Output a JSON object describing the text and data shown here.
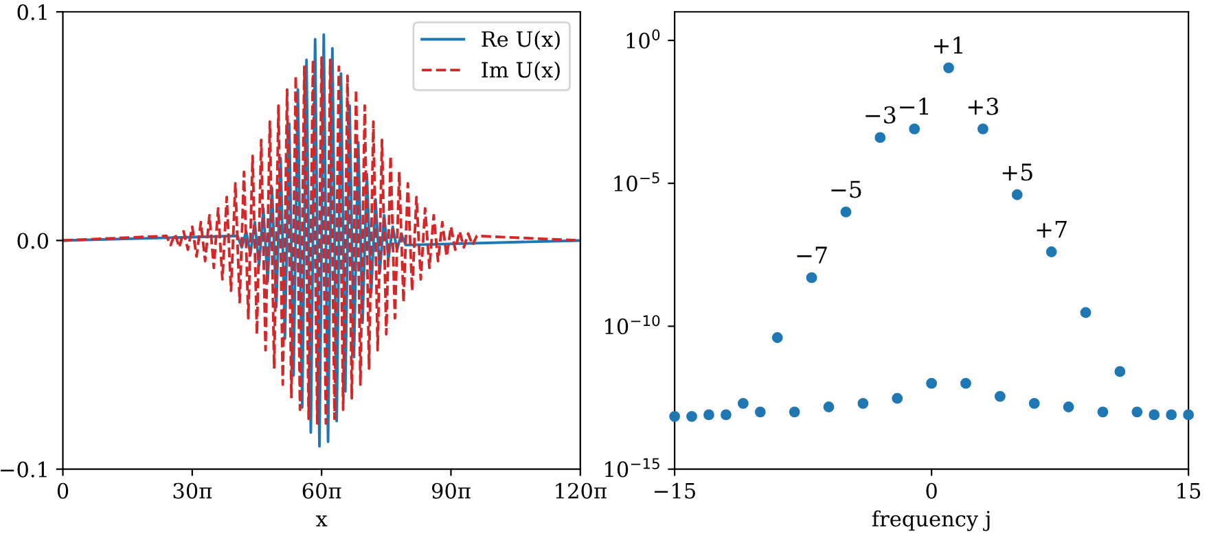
{
  "chart_data": [
    {
      "type": "line",
      "xlabel": "x",
      "xlim": [
        0,
        376.99
      ],
      "xticks": [
        0,
        {
          "value": 94.25,
          "label": "30π"
        },
        {
          "value": 188.5,
          "label": "60π"
        },
        {
          "value": 282.74,
          "label": "90π"
        },
        {
          "value": 376.99,
          "label": "120π"
        }
      ],
      "ylim": [
        -0.1,
        0.1
      ],
      "yticks": [
        {
          "value": -0.1,
          "label": "−0.1"
        },
        {
          "value": 0.0,
          "label": "0.0"
        },
        {
          "value": 0.1,
          "label": "0.1"
        }
      ],
      "legend": "top right",
      "grid": false,
      "series": [
        {
          "name": "Re U(x)",
          "color": "#1f77b4",
          "line_style": "solid",
          "x": [
            0,
            127.23,
            130.38,
            133.52,
            136.66,
            139.8,
            142.94,
            146.08,
            149.23,
            152.37,
            155.51,
            158.65,
            161.79,
            164.93,
            168.08,
            171.22,
            174.36,
            177.5,
            180.64,
            183.78,
            186.92,
            190.07,
            193.21,
            196.35,
            199.49,
            202.63,
            205.77,
            208.92,
            212.06,
            215.2,
            218.34,
            221.48,
            224.62,
            227.77,
            230.91,
            234.05,
            237.19,
            240.33,
            243.47,
            246.62,
            249.76,
            376.99
          ],
          "values": [
            0,
            0.002,
            -0.003,
            0.004,
            -0.006,
            0.008,
            -0.011,
            0.014,
            -0.018,
            0.023,
            -0.029,
            0.036,
            -0.043,
            0.051,
            -0.059,
            0.066,
            -0.073,
            0.079,
            -0.084,
            0.088,
            -0.09,
            0.09,
            -0.088,
            0.084,
            -0.079,
            0.073,
            -0.066,
            0.059,
            -0.051,
            0.043,
            -0.036,
            0.029,
            -0.023,
            0.018,
            -0.014,
            0.011,
            -0.008,
            0.006,
            -0.004,
            0.003,
            -0.002,
            0
          ]
        },
        {
          "name": "Im U(x)",
          "color": "#d62728",
          "line_style": "dashed",
          "x": [
            0,
            75.4,
            78.54,
            81.68,
            84.82,
            87.96,
            91.11,
            94.25,
            97.39,
            100.53,
            103.67,
            106.81,
            109.96,
            113.1,
            116.24,
            119.38,
            122.52,
            125.66,
            128.81,
            131.95,
            135.09,
            138.23,
            141.37,
            144.51,
            147.65,
            150.8,
            153.94,
            157.08,
            160.22,
            163.36,
            166.5,
            169.65,
            172.79,
            175.93,
            179.07,
            182.21,
            185.35,
            188.5,
            191.64,
            194.78,
            197.92,
            201.06,
            204.2,
            207.35,
            210.49,
            213.63,
            216.77,
            219.91,
            223.05,
            226.19,
            229.34,
            232.48,
            235.62,
            238.76,
            241.9,
            245.04,
            248.19,
            251.33,
            254.47,
            257.61,
            260.75,
            263.89,
            267.04,
            270.18,
            273.32,
            276.46,
            279.6,
            282.74,
            285.88,
            289.03,
            292.17,
            295.31,
            298.45,
            301.59,
            376.99
          ],
          "values": [
            0,
            0.002,
            -0.002,
            0.003,
            -0.003,
            0.004,
            -0.004,
            0.006,
            -0.007,
            0.008,
            -0.009,
            0.011,
            -0.012,
            0.014,
            -0.017,
            0.019,
            -0.022,
            0.025,
            -0.027,
            0.03,
            -0.034,
            0.037,
            -0.041,
            0.044,
            -0.048,
            0.052,
            -0.056,
            0.059,
            -0.063,
            0.066,
            -0.069,
            0.072,
            -0.074,
            0.076,
            -0.078,
            0.079,
            -0.08,
            0.08,
            -0.08,
            0.079,
            -0.078,
            0.076,
            -0.074,
            0.072,
            -0.069,
            0.066,
            -0.063,
            0.059,
            -0.056,
            0.052,
            -0.048,
            0.044,
            -0.041,
            0.037,
            -0.034,
            0.03,
            -0.027,
            0.025,
            -0.022,
            0.019,
            -0.017,
            0.014,
            -0.012,
            0.011,
            -0.009,
            0.008,
            -0.007,
            0.006,
            -0.004,
            0.004,
            -0.003,
            0.003,
            -0.002,
            0.002,
            0
          ]
        }
      ]
    },
    {
      "type": "scatter",
      "xlabel": "frequency j",
      "log": "y",
      "marker": "circle",
      "grid": false,
      "xlim": [
        -15,
        15
      ],
      "xticks": [
        {
          "value": -15,
          "label": "−15"
        },
        0,
        15
      ],
      "ylim": [
        1e-15,
        10
      ],
      "yticks": [
        {
          "value": 1e-15,
          "label": "10$^{−15}$"
        },
        {
          "value": 1e-10,
          "label": "10$^{−10}$"
        },
        {
          "value": 1e-05,
          "label": "10$^{−5}$"
        },
        {
          "value": 1,
          "label": "10$^{0}$"
        }
      ],
      "series": [
        {
          "color": "#1f77b4",
          "x": [
            -15,
            -14,
            -13,
            -12,
            -11,
            -10,
            -9,
            -8,
            -7,
            -6,
            -5,
            -4,
            -3,
            -2,
            -1,
            0,
            1,
            2,
            3,
            4,
            5,
            6,
            7,
            8,
            9,
            10,
            11,
            12,
            13,
            14,
            15
          ],
          "values": [
            7e-14,
            7e-14,
            8e-14,
            8e-14,
            2e-13,
            1e-13,
            4e-11,
            1e-13,
            5e-09,
            1.5e-13,
            1e-06,
            2e-13,
            0.0004,
            3e-13,
            0.0008,
            1e-12,
            0.11,
            1e-12,
            0.0008,
            3.5e-13,
            4e-06,
            2e-13,
            4e-08,
            1.5e-13,
            3e-10,
            1e-13,
            2.6e-12,
            1e-13,
            8e-14,
            8e-14,
            8e-14
          ]
        }
      ],
      "annotations": [
        {
          "text": "−7",
          "x": -7,
          "y": 5e-09
        },
        {
          "text": "−5",
          "x": -5,
          "y": 1e-06
        },
        {
          "text": "−3",
          "x": -3,
          "y": 0.0004
        },
        {
          "text": "−1",
          "x": -1,
          "y": 0.0008
        },
        {
          "text": "+1",
          "x": 1,
          "y": 0.11
        },
        {
          "text": "+3",
          "x": 3,
          "y": 0.0008
        },
        {
          "text": "+5",
          "x": 5,
          "y": 4e-06
        },
        {
          "text": "+7",
          "x": 7,
          "y": 4e-08
        }
      ]
    }
  ]
}
